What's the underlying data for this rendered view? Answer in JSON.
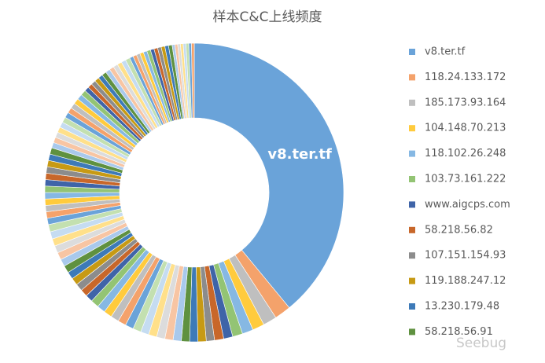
{
  "chart_data": {
    "type": "donut",
    "title": "样本C&C上线频度",
    "watermark": "Seebug",
    "categories": [
      "v8.ter.tf",
      "118.24.133.172",
      "185.173.93.164",
      "104.148.70.213",
      "118.102.26.248",
      "103.73.161.222",
      "www.aigcps.com",
      "58.218.56.82",
      "107.151.154.93",
      "119.188.247.12",
      "13.230.179.48",
      "58.218.56.91",
      null,
      null,
      null,
      null,
      null,
      null,
      null,
      null,
      null,
      null,
      null,
      null,
      null,
      null,
      null,
      null,
      null,
      null,
      null,
      null,
      null,
      null,
      null,
      null,
      null,
      null,
      null,
      null,
      null,
      null,
      null,
      null,
      null,
      null,
      null,
      null,
      null,
      null,
      null,
      null,
      null,
      null,
      null,
      null,
      null,
      null,
      null,
      null,
      null,
      null,
      null,
      null,
      null,
      null,
      null,
      null,
      null,
      null,
      null,
      null,
      null,
      null,
      null,
      null,
      null,
      null,
      null,
      null,
      null,
      null,
      null,
      null,
      null,
      null,
      null,
      null,
      null,
      null,
      null,
      null
    ],
    "values": [
      39.5,
      1.8,
      1.5,
      1.3,
      1.2,
      1.1,
      1.0,
      1.0,
      0.9,
      0.9,
      0.9,
      0.9,
      0.9,
      0.9,
      0.9,
      0.9,
      0.9,
      0.9,
      0.9,
      0.9,
      0.9,
      0.9,
      0.9,
      0.9,
      0.8,
      0.8,
      0.8,
      0.8,
      0.8,
      0.8,
      0.8,
      0.8,
      0.8,
      0.8,
      0.8,
      0.8,
      0.7,
      0.7,
      0.7,
      0.7,
      0.7,
      0.7,
      0.7,
      0.7,
      0.7,
      0.7,
      0.7,
      0.7,
      0.6,
      0.6,
      0.6,
      0.6,
      0.6,
      0.6,
      0.6,
      0.6,
      0.6,
      0.6,
      0.6,
      0.6,
      0.5,
      0.5,
      0.5,
      0.5,
      0.5,
      0.5,
      0.5,
      0.5,
      0.5,
      0.5,
      0.5,
      0.5,
      0.4,
      0.4,
      0.4,
      0.4,
      0.4,
      0.4,
      0.4,
      0.4,
      0.4,
      0.4,
      0.4,
      0.4,
      0.3,
      0.3,
      0.3,
      0.3,
      0.3,
      0.3,
      0.3,
      0.3
    ],
    "colors": [
      "#6aa3d9",
      "#f4a26b",
      "#bfbfbf",
      "#ffcb3d",
      "#86b8e3",
      "#93c474",
      "#3f64a8",
      "#c8672a",
      "#8c8c8c",
      "#c79a14",
      "#3d7ab8",
      "#5f9140",
      "#a9c9ec",
      "#f8c5a3",
      "#dcdcdc",
      "#ffe08a",
      "#c5dcf1",
      "#c3e0b0"
    ],
    "data_label_index": 0,
    "legend": "right"
  }
}
